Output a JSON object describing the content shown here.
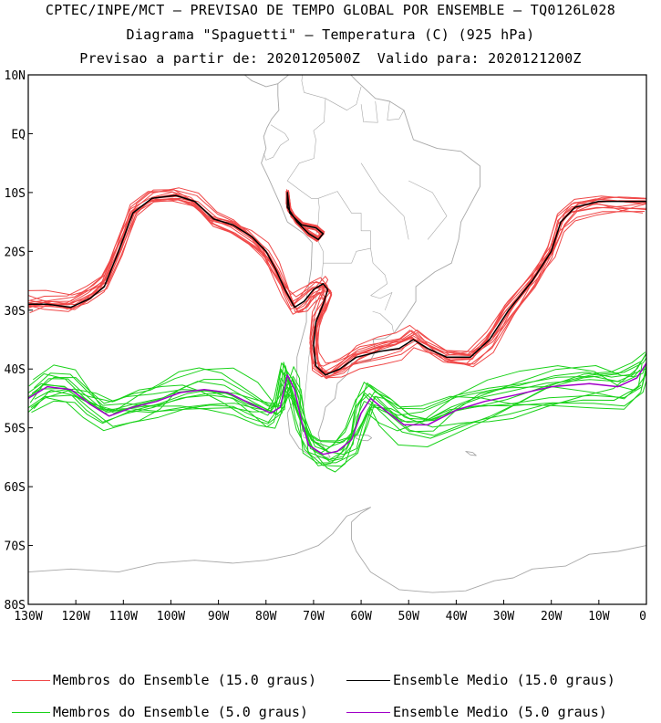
{
  "header": {
    "line1": "CPTEC/INPE/MCT – PREVISAO DE TEMPO GLOBAL POR ENSEMBLE – TQ0126L028",
    "line2": "Diagrama \"Spaguetti\" – Temperatura (C) (925 hPa)",
    "line3": "Previsao a partir de: 2020120500Z  Valido para: 2020121200Z"
  },
  "colors": {
    "members_15": "#f04848",
    "mean_15": "#000000",
    "members_5": "#19d219",
    "mean_5": "#a000c8",
    "coast": "#a8a8a8"
  },
  "map": {
    "lon_range": [
      -130,
      0
    ],
    "lat_range": [
      -80,
      10
    ],
    "lat_ticks": [
      "10N",
      "EQ",
      "10S",
      "20S",
      "30S",
      "40S",
      "50S",
      "60S",
      "70S",
      "80S"
    ],
    "lon_ticks": [
      "130W",
      "120W",
      "110W",
      "100W",
      "90W",
      "80W",
      "70W",
      "60W",
      "50W",
      "40W",
      "30W",
      "20W",
      "10W",
      "0"
    ]
  },
  "legend": {
    "members_15": "Membros do Ensemble (15.0 graus)",
    "mean_15": "Ensemble Medio (15.0 graus)",
    "members_5": "Membros do Ensemble (5.0 graus)",
    "mean_5": "Ensemble Medio (5.0 graus)"
  },
  "contours": {
    "mean_15": {
      "main": [
        [
          -130,
          -29
        ],
        [
          -126,
          -29
        ],
        [
          -121,
          -29.5
        ],
        [
          -117,
          -28
        ],
        [
          -114,
          -26
        ],
        [
          -111,
          -20
        ],
        [
          -108,
          -13.5
        ],
        [
          -104,
          -11
        ],
        [
          -99,
          -10.5
        ],
        [
          -95,
          -11.5
        ],
        [
          -91,
          -14.5
        ],
        [
          -87,
          -15.5
        ],
        [
          -83,
          -17.5
        ],
        [
          -80,
          -20
        ],
        [
          -78,
          -23
        ],
        [
          -76,
          -26.5
        ],
        [
          -74,
          -29.5
        ],
        [
          -72,
          -28.5
        ],
        [
          -70,
          -26.5
        ],
        [
          -68,
          -25.5
        ],
        [
          -67,
          -26.5
        ],
        [
          -68,
          -29
        ],
        [
          -69.5,
          -32
        ],
        [
          -70,
          -36
        ],
        [
          -69.5,
          -39.5
        ],
        [
          -67.5,
          -41
        ],
        [
          -64.5,
          -40
        ],
        [
          -61,
          -38
        ],
        [
          -56,
          -37
        ],
        [
          -52,
          -36.5
        ],
        [
          -49,
          -35
        ],
        [
          -46,
          -36.5
        ],
        [
          -42,
          -38
        ],
        [
          -37,
          -38
        ],
        [
          -33,
          -35
        ],
        [
          -29,
          -30
        ],
        [
          -24,
          -25
        ],
        [
          -20,
          -20
        ],
        [
          -18,
          -15
        ],
        [
          -15,
          -12.5
        ],
        [
          -10,
          -11.5
        ],
        [
          -5,
          -11.5
        ],
        [
          0,
          -11.5
        ]
      ],
      "lobe": [
        [
          -75.5,
          -10
        ],
        [
          -75,
          -13.5
        ],
        [
          -72.5,
          -15.5
        ],
        [
          -69.5,
          -16
        ],
        [
          -68,
          -17
        ],
        [
          -69,
          -18
        ],
        [
          -71,
          -17
        ],
        [
          -73.5,
          -15
        ],
        [
          -75.5,
          -12.5
        ]
      ]
    },
    "mean_5": [
      [
        -130,
        -45
      ],
      [
        -126,
        -43
      ],
      [
        -121,
        -43.5
      ],
      [
        -117,
        -46
      ],
      [
        -113,
        -48
      ],
      [
        -108,
        -46.5
      ],
      [
        -103,
        -45.5
      ],
      [
        -98,
        -44
      ],
      [
        -93,
        -43.5
      ],
      [
        -88,
        -44
      ],
      [
        -83,
        -46
      ],
      [
        -79,
        -47.5
      ],
      [
        -77,
        -46.5
      ],
      [
        -75.5,
        -41
      ],
      [
        -74,
        -43.5
      ],
      [
        -72.5,
        -49
      ],
      [
        -71,
        -53
      ],
      [
        -68,
        -54.5
      ],
      [
        -65,
        -54
      ],
      [
        -62,
        -52
      ],
      [
        -60,
        -47.5
      ],
      [
        -58,
        -45
      ],
      [
        -55,
        -47
      ],
      [
        -51,
        -49.5
      ],
      [
        -46,
        -49.5
      ],
      [
        -40,
        -47
      ],
      [
        -34,
        -45.5
      ],
      [
        -28,
        -44.5
      ],
      [
        -20,
        -43
      ],
      [
        -12,
        -42.5
      ],
      [
        -6,
        -43
      ],
      [
        -2,
        -41.5
      ],
      [
        0,
        -39
      ]
    ]
  },
  "land": {
    "south_america": [
      [
        -77.5,
        8.5
      ],
      [
        -73,
        11.5
      ],
      [
        -71,
        12.2
      ],
      [
        -67,
        10.6
      ],
      [
        -63,
        10.7
      ],
      [
        -61,
        9
      ],
      [
        -57,
        6
      ],
      [
        -54,
        5.5
      ],
      [
        -51,
        4
      ],
      [
        -50,
        1.5
      ],
      [
        -49,
        -1
      ],
      [
        -44,
        -2.5
      ],
      [
        -39,
        -3
      ],
      [
        -35,
        -5.5
      ],
      [
        -35,
        -9
      ],
      [
        -37,
        -12
      ],
      [
        -39,
        -15
      ],
      [
        -39.5,
        -18
      ],
      [
        -41,
        -22
      ],
      [
        -44.5,
        -23.5
      ],
      [
        -48.5,
        -26
      ],
      [
        -48.5,
        -28.5
      ],
      [
        -50.5,
        -31
      ],
      [
        -53,
        -33.8
      ],
      [
        -55,
        -34.8
      ],
      [
        -57.5,
        -35
      ],
      [
        -57,
        -37
      ],
      [
        -58,
        -38.5
      ],
      [
        -62,
        -39
      ],
      [
        -63,
        -41
      ],
      [
        -65,
        -42.5
      ],
      [
        -65.5,
        -45
      ],
      [
        -67.5,
        -46.5
      ],
      [
        -68,
        -48.5
      ],
      [
        -69,
        -51
      ],
      [
        -68.5,
        -52.5
      ],
      [
        -66.5,
        -55
      ],
      [
        -70,
        -55
      ],
      [
        -73,
        -53.5
      ],
      [
        -75,
        -51
      ],
      [
        -75.5,
        -47.5
      ],
      [
        -74,
        -45
      ],
      [
        -73.5,
        -41.5
      ],
      [
        -73.5,
        -38
      ],
      [
        -71.5,
        -32
      ],
      [
        -71.5,
        -28
      ],
      [
        -70.5,
        -23
      ],
      [
        -70.3,
        -18.5
      ],
      [
        -72,
        -17
      ],
      [
        -75.5,
        -15
      ],
      [
        -77,
        -12
      ],
      [
        -79.5,
        -7.5
      ],
      [
        -81,
        -5
      ],
      [
        -80,
        -2.5
      ],
      [
        -80.5,
        -0.5
      ],
      [
        -79.8,
        1
      ],
      [
        -78.8,
        2.5
      ],
      [
        -77.3,
        4
      ],
      [
        -77.5,
        6.5
      ],
      [
        -77.5,
        8.5
      ]
    ],
    "central_america": [
      [
        -77.5,
        8.5
      ],
      [
        -80,
        8
      ],
      [
        -83,
        9
      ],
      [
        -86,
        11
      ],
      [
        -88,
        13.5
      ],
      [
        -91,
        14
      ],
      [
        -92.5,
        15
      ]
    ],
    "antarctica": [
      [
        -130,
        -74.5
      ],
      [
        -121,
        -74
      ],
      [
        -111,
        -74.5
      ],
      [
        -103,
        -73
      ],
      [
        -95,
        -72.5
      ],
      [
        -87,
        -73
      ],
      [
        -80,
        -72.5
      ],
      [
        -74,
        -71.5
      ],
      [
        -69,
        -70
      ],
      [
        -66,
        -68
      ],
      [
        -63,
        -65
      ],
      [
        -58,
        -63.5
      ],
      [
        -60,
        -64.5
      ],
      [
        -62,
        -66
      ],
      [
        -62,
        -69
      ],
      [
        -61,
        -71
      ],
      [
        -58,
        -74.5
      ],
      [
        -52,
        -77.5
      ],
      [
        -45,
        -78
      ],
      [
        -38,
        -77.7
      ],
      [
        -32,
        -76
      ],
      [
        -28,
        -75.5
      ],
      [
        -24,
        -74
      ],
      [
        -17,
        -73.5
      ],
      [
        -12,
        -71.5
      ],
      [
        -6,
        -71
      ],
      [
        0,
        -70
      ]
    ],
    "falklands": [
      [
        -61.2,
        -51.4
      ],
      [
        -60,
        -51.2
      ],
      [
        -58.5,
        -51.3
      ],
      [
        -57.8,
        -51.7
      ],
      [
        -58.6,
        -52.2
      ],
      [
        -60,
        -52.1
      ],
      [
        -61,
        -51.8
      ],
      [
        -61.2,
        -51.4
      ]
    ],
    "south_georgia": [
      [
        -38,
        -54
      ],
      [
        -36.5,
        -54.2
      ],
      [
        -35.8,
        -54.7
      ],
      [
        -37,
        -54.6
      ],
      [
        -38,
        -54
      ]
    ],
    "borders": [
      [
        [
          -72,
          12
        ],
        [
          -72.5,
          9
        ],
        [
          -72,
          7
        ],
        [
          -67.5,
          6
        ],
        [
          -67.8,
          2
        ],
        [
          -70,
          0.5
        ],
        [
          -69.5,
          -1
        ],
        [
          -69.9,
          -4.2
        ],
        [
          -73,
          -5
        ],
        [
          -75.5,
          -8
        ],
        [
          -73,
          -9.5
        ],
        [
          -70.5,
          -11
        ],
        [
          -69,
          -11
        ],
        [
          -68.8,
          -12.5
        ],
        [
          -69,
          -15
        ],
        [
          -69.5,
          -17.5
        ]
      ],
      [
        [
          -67.5,
          6
        ],
        [
          -63,
          4
        ],
        [
          -61,
          5
        ],
        [
          -60,
          8
        ]
      ],
      [
        [
          -79,
          1.5
        ],
        [
          -76,
          0
        ],
        [
          -75.2,
          -1
        ],
        [
          -77,
          -2
        ],
        [
          -78.5,
          -4
        ],
        [
          -80,
          -4.5
        ],
        [
          -80.5,
          -3.4
        ]
      ],
      [
        [
          -60,
          5
        ],
        [
          -59.5,
          2
        ],
        [
          -56.5,
          1.9
        ],
        [
          -57,
          5.5
        ]
      ],
      [
        [
          -54,
          5.5
        ],
        [
          -54.5,
          2.3
        ],
        [
          -52,
          2.5
        ],
        [
          -51,
          4
        ]
      ],
      [
        [
          -69,
          -11
        ],
        [
          -65,
          -9.8
        ],
        [
          -62,
          -13.5
        ],
        [
          -60,
          -13.5
        ],
        [
          -60,
          -16.5
        ],
        [
          -58,
          -16.5
        ],
        [
          -58,
          -19.5
        ]
      ],
      [
        [
          -69.5,
          -17.5
        ],
        [
          -68,
          -20
        ],
        [
          -68,
          -22
        ],
        [
          -66,
          -22
        ],
        [
          -64,
          -22
        ],
        [
          -62,
          -22
        ]
      ],
      [
        [
          -62,
          -22
        ],
        [
          -61,
          -20
        ],
        [
          -58,
          -19.5
        ],
        [
          -57.5,
          -22
        ],
        [
          -55,
          -24
        ],
        [
          -54.5,
          -25.5
        ],
        [
          -58,
          -27.5
        ]
      ],
      [
        [
          -68,
          -22
        ],
        [
          -68.3,
          -24.5
        ],
        [
          -69.5,
          -28
        ],
        [
          -70,
          -33
        ],
        [
          -71,
          -38
        ],
        [
          -71.5,
          -42
        ],
        [
          -72,
          -46
        ],
        [
          -73,
          -49.5
        ],
        [
          -72,
          -51.7
        ],
        [
          -68.5,
          -52.3
        ]
      ],
      [
        [
          -57.6,
          -30.2
        ],
        [
          -56,
          -30.6
        ],
        [
          -53.5,
          -32.5
        ],
        [
          -53.2,
          -33.7
        ]
      ],
      [
        [
          -58,
          -27.5
        ],
        [
          -56,
          -28
        ],
        [
          -53.5,
          -27
        ],
        [
          -55,
          -30
        ]
      ],
      [
        [
          -50,
          -8
        ],
        [
          -45,
          -10
        ],
        [
          -42,
          -14
        ],
        [
          -46,
          -18
        ]
      ],
      [
        [
          -60,
          -5
        ],
        [
          -56,
          -10
        ],
        [
          -51,
          -14
        ],
        [
          -50,
          -18
        ]
      ]
    ]
  }
}
